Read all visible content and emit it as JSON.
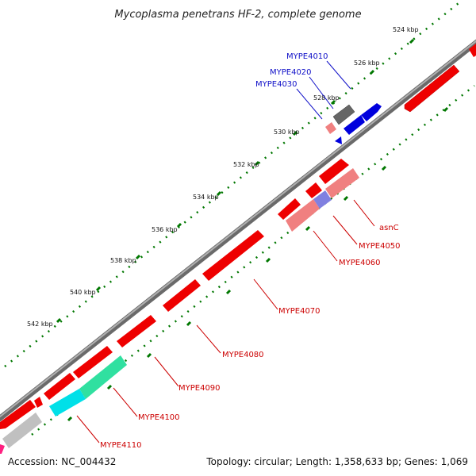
{
  "title": "Mycoplasma penetrans HF-2, complete genome",
  "accession": "Accession: NC_004432",
  "topology": "Topology: circular; Length: 1,358,633 bp; Genes: 1,069",
  "ticks": [
    "524 kbp",
    "526 kbp",
    "528 kbp",
    "530 kbp",
    "532 kbp",
    "534 kbp",
    "536 kbp",
    "538 kbp",
    "540 kbp",
    "542 kbp"
  ],
  "labels_blue": [
    "MYPE4010",
    "MYPE4020",
    "MYPE4030"
  ],
  "labels_red": [
    "asnC",
    "MYPE4050",
    "MYPE4060",
    "MYPE4070",
    "MYPE4080",
    "MYPE4090",
    "MYPE4100",
    "MYPE4110"
  ],
  "colors": {
    "backbone": "#888888",
    "cds": "#ee0000",
    "cds_light": "#f08080",
    "gene_grey": "#666666",
    "gene_blue": "#0000dd",
    "gene_purple": "#8080e0",
    "gene_cyan": "#00e0e8",
    "gene_green": "#30e0a0",
    "gene_lightgrey": "#c0c0c0",
    "tick_green": "#007700",
    "label_blue": "#1010c8",
    "label_red": "#cc0000"
  }
}
